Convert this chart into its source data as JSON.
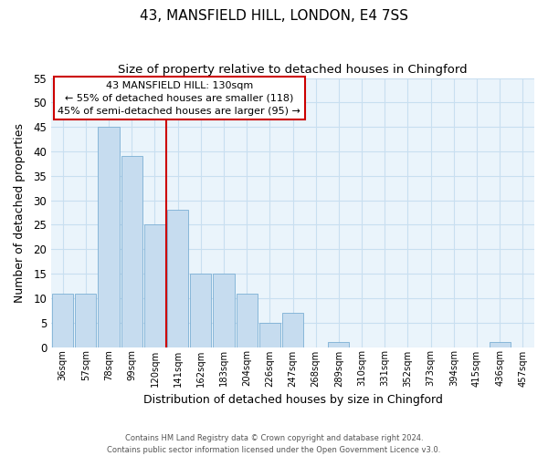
{
  "title": "43, MANSFIELD HILL, LONDON, E4 7SS",
  "subtitle": "Size of property relative to detached houses in Chingford",
  "xlabel": "Distribution of detached houses by size in Chingford",
  "ylabel": "Number of detached properties",
  "bar_labels": [
    "36sqm",
    "57sqm",
    "78sqm",
    "99sqm",
    "120sqm",
    "141sqm",
    "162sqm",
    "183sqm",
    "204sqm",
    "226sqm",
    "247sqm",
    "268sqm",
    "289sqm",
    "310sqm",
    "331sqm",
    "352sqm",
    "373sqm",
    "394sqm",
    "415sqm",
    "436sqm",
    "457sqm"
  ],
  "bar_values": [
    11,
    11,
    45,
    39,
    25,
    28,
    15,
    15,
    11,
    5,
    7,
    0,
    1,
    0,
    0,
    0,
    0,
    0,
    0,
    1,
    0
  ],
  "bar_color": "#c6dcef",
  "bar_edge_color": "#7bafd4",
  "ylim": [
    0,
    55
  ],
  "yticks": [
    0,
    5,
    10,
    15,
    20,
    25,
    30,
    35,
    40,
    45,
    50,
    55
  ],
  "property_line_label": "43 MANSFIELD HILL: 130sqm",
  "annotation_line1": "← 55% of detached houses are smaller (118)",
  "annotation_line2": "45% of semi-detached houses are larger (95) →",
  "vline_x": 4.5,
  "vline_color": "#cc0000",
  "footer_line1": "Contains HM Land Registry data © Crown copyright and database right 2024.",
  "footer_line2": "Contains public sector information licensed under the Open Government Licence v3.0.",
  "grid_color": "#c8dff0",
  "background_color": "#eaf4fb"
}
